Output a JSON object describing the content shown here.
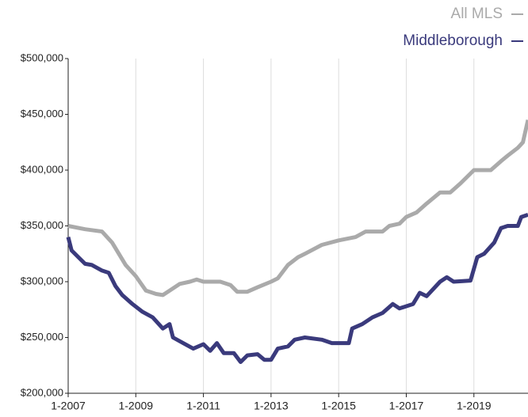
{
  "chart_data": {
    "type": "line",
    "xlim": [
      2007,
      2020.6
    ],
    "xticks": [
      {
        "value": 2007,
        "label": "1-2007"
      },
      {
        "value": 2009,
        "label": "1-2009"
      },
      {
        "value": 2011,
        "label": "1-2011"
      },
      {
        "value": 2013,
        "label": "1-2013"
      },
      {
        "value": 2015,
        "label": "1-2015"
      },
      {
        "value": 2017,
        "label": "1-2017"
      },
      {
        "value": 2019,
        "label": "1-2019"
      }
    ],
    "ylim": [
      200000,
      500000
    ],
    "yticks": [
      {
        "value": 200000,
        "label": "$200,000"
      },
      {
        "value": 250000,
        "label": "$250,000"
      },
      {
        "value": 300000,
        "label": "$300,000"
      },
      {
        "value": 350000,
        "label": "$350,000"
      },
      {
        "value": 400000,
        "label": "$400,000"
      },
      {
        "value": 450000,
        "label": "$450,000"
      },
      {
        "value": 500000,
        "label": "$500,000"
      }
    ],
    "grid": true,
    "legend": "top-right",
    "series": [
      {
        "name": "All MLS",
        "color": "#aaaaaa",
        "x": [
          2007.0,
          2007.5,
          2008.0,
          2008.3,
          2008.7,
          2009.0,
          2009.3,
          2009.6,
          2009.8,
          2010.0,
          2010.3,
          2010.6,
          2010.8,
          2011.0,
          2011.5,
          2011.8,
          2012.0,
          2012.3,
          2012.6,
          2013.0,
          2013.2,
          2013.5,
          2013.8,
          2014.0,
          2014.5,
          2015.0,
          2015.5,
          2015.8,
          2016.3,
          2016.5,
          2016.8,
          2017.0,
          2017.3,
          2017.6,
          2018.0,
          2018.3,
          2018.6,
          2019.0,
          2019.5,
          2019.8,
          2020.0,
          2020.3,
          2020.45,
          2020.6
        ],
        "values": [
          350000,
          347000,
          345000,
          335000,
          315000,
          305000,
          292000,
          289000,
          288000,
          292000,
          298000,
          300000,
          302000,
          300000,
          300000,
          297000,
          291000,
          291000,
          295000,
          300000,
          303000,
          315000,
          322000,
          325000,
          333000,
          337000,
          340000,
          345000,
          345000,
          350000,
          352000,
          358000,
          362000,
          370000,
          380000,
          380000,
          388000,
          400000,
          400000,
          408000,
          413000,
          420000,
          425000,
          445000
        ]
      },
      {
        "name": "Middleborough",
        "color": "#3a3a7c",
        "x": [
          2007.0,
          2007.1,
          2007.3,
          2007.5,
          2007.7,
          2008.0,
          2008.2,
          2008.4,
          2008.6,
          2008.9,
          2009.2,
          2009.5,
          2009.8,
          2010.0,
          2010.1,
          2010.4,
          2010.7,
          2011.0,
          2011.2,
          2011.4,
          2011.6,
          2011.9,
          2012.1,
          2012.3,
          2012.6,
          2012.8,
          2013.0,
          2013.2,
          2013.5,
          2013.7,
          2014.0,
          2014.5,
          2014.8,
          2015.3,
          2015.4,
          2015.7,
          2016.0,
          2016.3,
          2016.6,
          2016.8,
          2017.2,
          2017.4,
          2017.6,
          2018.0,
          2018.2,
          2018.4,
          2018.9,
          2019.1,
          2019.3,
          2019.6,
          2019.8,
          2020.0,
          2020.3,
          2020.4,
          2020.6
        ],
        "values": [
          340000,
          328000,
          322000,
          316000,
          315000,
          310000,
          308000,
          296000,
          288000,
          280000,
          273000,
          268000,
          258000,
          262000,
          250000,
          245000,
          240000,
          244000,
          238000,
          245000,
          236000,
          236000,
          228000,
          234000,
          235000,
          230000,
          230000,
          240000,
          242000,
          248000,
          250000,
          248000,
          245000,
          245000,
          258000,
          262000,
          268000,
          272000,
          280000,
          276000,
          280000,
          290000,
          287000,
          300000,
          304000,
          300000,
          301000,
          322000,
          325000,
          335000,
          348000,
          350000,
          350000,
          358000,
          360000
        ]
      }
    ]
  }
}
